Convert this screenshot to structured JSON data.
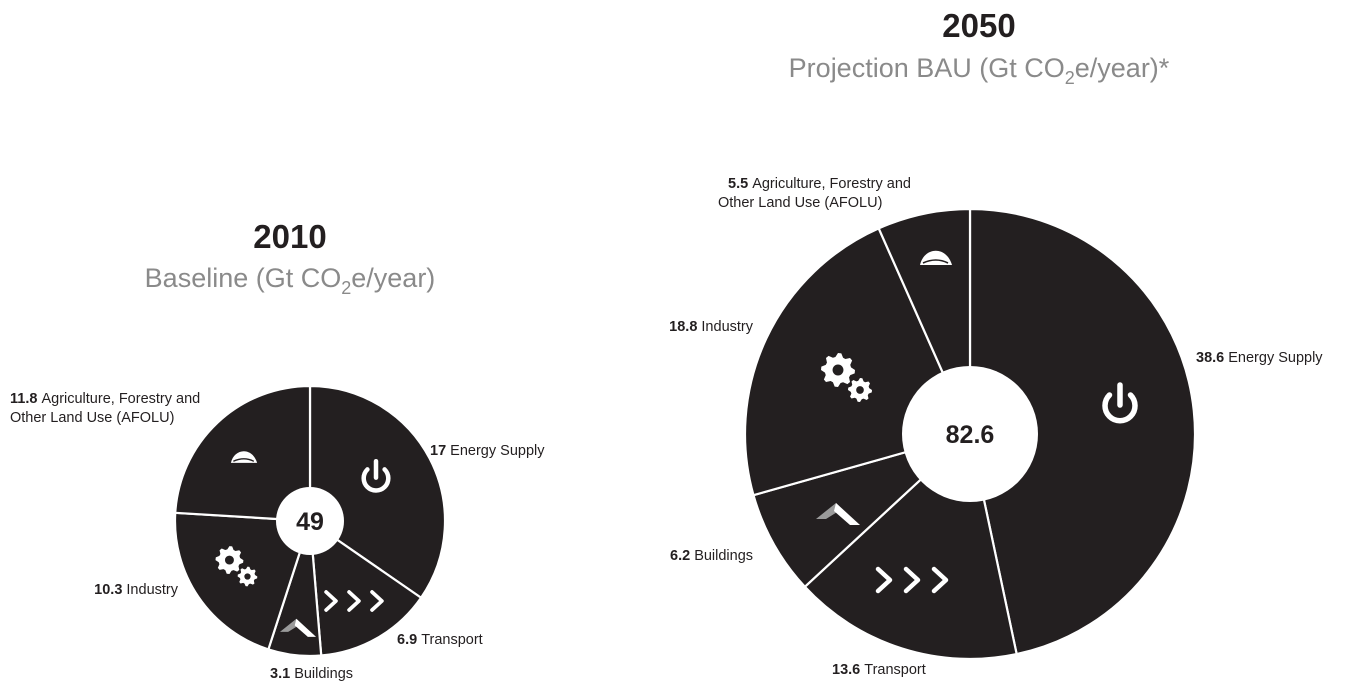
{
  "chart_data": [
    {
      "type": "pie",
      "year": "2010",
      "subtitle_pre": "Baseline (Gt CO",
      "subtitle_sub": "2",
      "subtitle_post": "e/year)",
      "total": "49",
      "slices": [
        {
          "name": "Energy Supply",
          "value": 17,
          "label_num": "17",
          "label_lines": [
            "Energy Supply"
          ],
          "icon": "power-icon"
        },
        {
          "name": "Transport",
          "value": 6.9,
          "label_num": "6.9",
          "label_lines": [
            "Transport"
          ],
          "icon": "chevrons-icon"
        },
        {
          "name": "Buildings",
          "value": 3.1,
          "label_num": "3.1",
          "label_lines": [
            "Buildings"
          ],
          "icon": "roof-icon"
        },
        {
          "name": "Industry",
          "value": 10.3,
          "label_num": "10.3",
          "label_lines": [
            "Industry"
          ],
          "icon": "gears-icon"
        },
        {
          "name": "Agriculture, Forestry and Other Land Use (AFOLU)",
          "value": 11.8,
          "label_num": "11.8",
          "label_lines": [
            "Agriculture, Forestry and",
            "Other Land Use (AFOLU)"
          ],
          "icon": "leaf-icon"
        }
      ]
    },
    {
      "type": "pie",
      "year": "2050",
      "subtitle_pre": "Projection BAU (Gt CO",
      "subtitle_sub": "2",
      "subtitle_post": "e/year)*",
      "total": "82.6",
      "slices": [
        {
          "name": "Energy Supply",
          "value": 38.6,
          "label_num": "38.6",
          "label_lines": [
            "Energy Supply"
          ],
          "icon": "power-icon"
        },
        {
          "name": "Transport",
          "value": 13.6,
          "label_num": "13.6",
          "label_lines": [
            "Transport"
          ],
          "icon": "chevrons-icon"
        },
        {
          "name": "Buildings",
          "value": 6.2,
          "label_num": "6.2",
          "label_lines": [
            "Buildings"
          ],
          "icon": "roof-icon"
        },
        {
          "name": "Industry",
          "value": 18.8,
          "label_num": "18.8",
          "label_lines": [
            "Industry"
          ],
          "icon": "gears-icon"
        },
        {
          "name": "Agriculture, Forestry and Other Land Use (AFOLU)",
          "value": 5.5,
          "label_num": "5.5",
          "label_lines": [
            "Agriculture, Forestry and",
            "Other Land Use (AFOLU)"
          ],
          "icon": "leaf-icon"
        }
      ]
    }
  ],
  "colors": {
    "slice": "#231f20",
    "divider": "#ffffff",
    "icon": "#ffffff",
    "roof_light": "#9a9a9a",
    "subtitle": "#8a8a8a"
  }
}
